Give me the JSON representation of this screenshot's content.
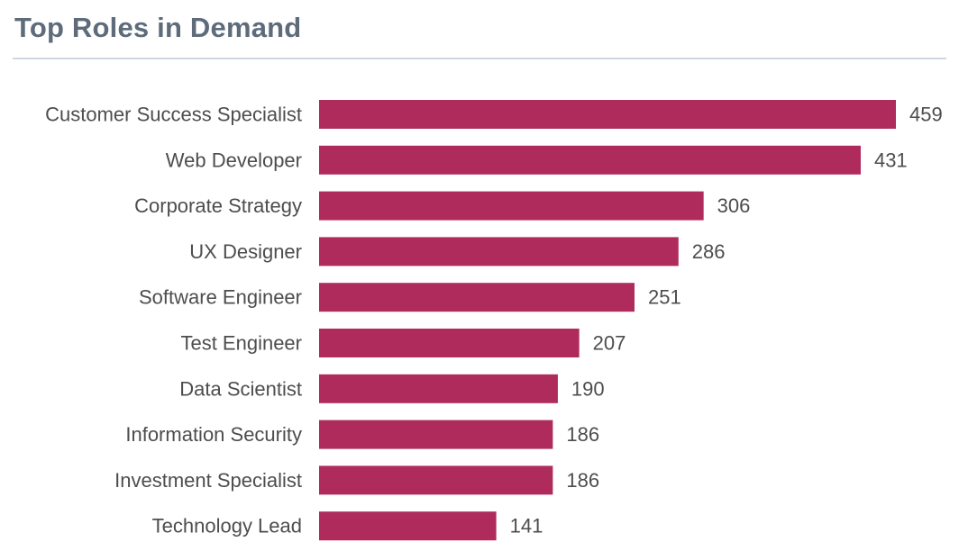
{
  "title": "Top Roles in Demand",
  "chart_data": {
    "type": "bar",
    "orientation": "horizontal",
    "title": "Top Roles in Demand",
    "categories": [
      "Customer Success Specialist",
      "Web Developer",
      "Corporate Strategy",
      "UX Designer",
      "Software Engineer",
      "Test Engineer",
      "Data Scientist",
      "Information Security",
      "Investment Specialist",
      "Technology Lead"
    ],
    "values": [
      459,
      431,
      306,
      286,
      251,
      207,
      190,
      186,
      186,
      141
    ],
    "xlim": [
      0,
      459
    ],
    "xlabel": "",
    "ylabel": "",
    "grid": false,
    "legend": "none",
    "bar_color": "#ae2b5c"
  }
}
